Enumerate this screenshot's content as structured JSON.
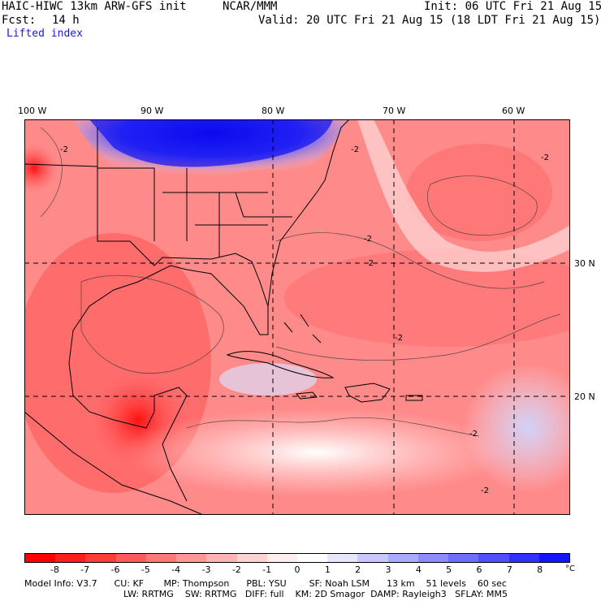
{
  "header": {
    "model_title": "HAIC-HIWC 13km ARW-GFS init",
    "org": "NCAR/MMM",
    "init_time": "Init: 06 UTC Fri 21 Aug 15",
    "fcst_label": "Fcst:",
    "fcst_value": "14 h",
    "valid_time": "Valid: 20 UTC Fri 21 Aug 15 (18 LDT Fri 21 Aug 15)",
    "field_name": "Lifted index"
  },
  "map": {
    "lon_labels": [
      "100 W",
      "90 W",
      "80 W",
      "70 W",
      "60 W"
    ],
    "lat_labels": [
      "30 N",
      "20 N"
    ],
    "contour_label": "-2"
  },
  "colorbar": {
    "unit": "°C",
    "labels": [
      "-8",
      "-7",
      "-6",
      "-5",
      "-4",
      "-3",
      "-2",
      "-1",
      "0",
      "1",
      "2",
      "3",
      "4",
      "5",
      "6",
      "7",
      "8"
    ],
    "colors": [
      "#ff0000",
      "#ff1e1e",
      "#ff3c3c",
      "#ff5a5a",
      "#ff7878",
      "#ff9696",
      "#ffb4b4",
      "#ffd2d2",
      "#ffeeee",
      "#ffffff",
      "#e6e6ff",
      "#c8c8ff",
      "#aaaaff",
      "#8c8cff",
      "#6e6eff",
      "#5050ff",
      "#3232ff",
      "#1414ff"
    ]
  },
  "model_info": {
    "line1": "Model Info: V3.7      CU: KF       MP: Thompson      PBL: YSU        SF: Noah LSM      13 km    51 levels    60 sec",
    "line2": "LW: RRTMG    SW: RRTMG   DIFF: full    KM: 2D Smagor  DAMP: Rayleigh3   SFLAY: MM5"
  }
}
